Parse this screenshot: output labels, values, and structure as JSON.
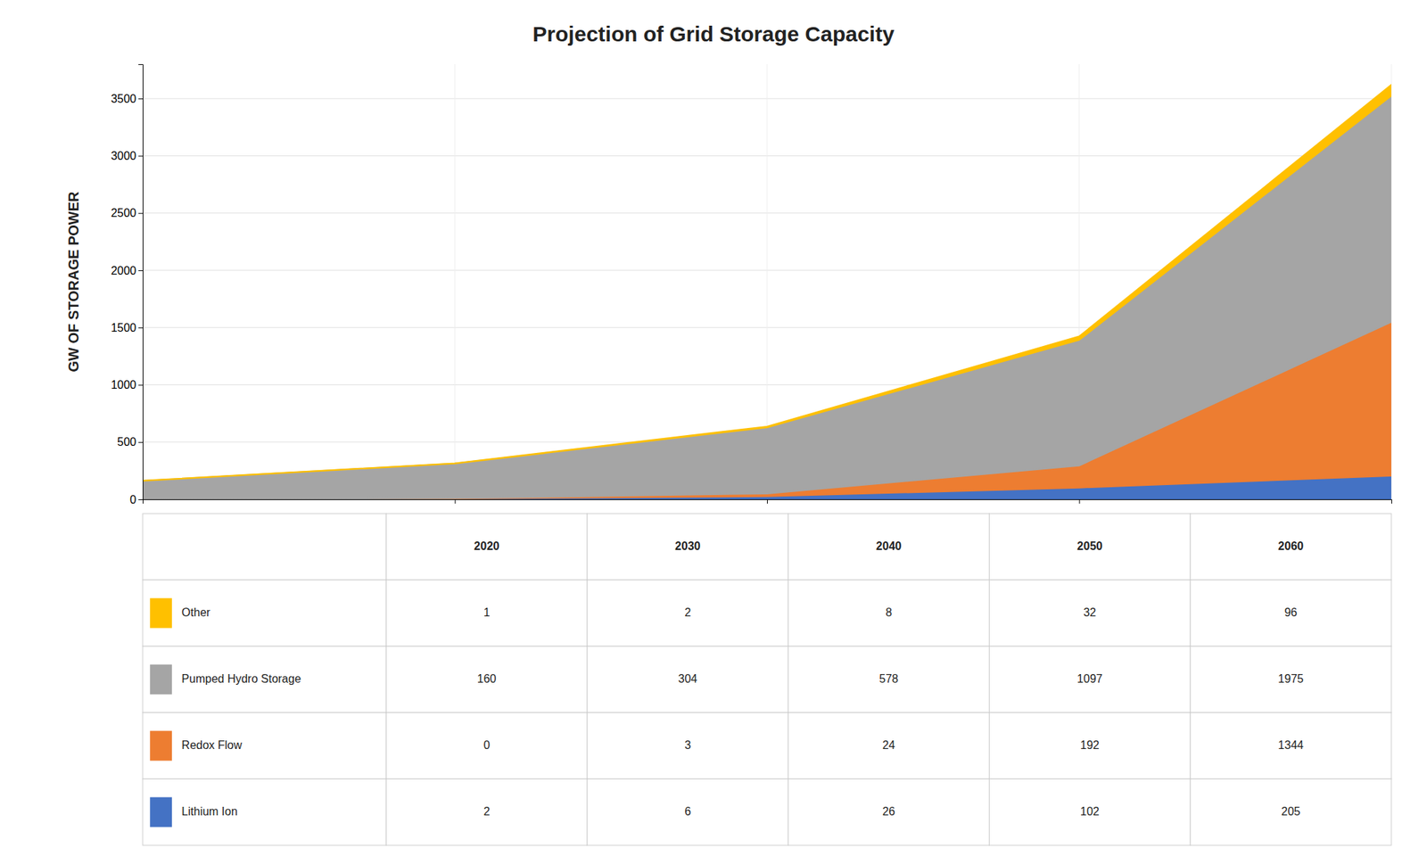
{
  "chart_data": {
    "type": "area",
    "title": "Projection of Grid Storage Capacity",
    "y_label": "GW OF STORAGE POWER",
    "x": [
      2020,
      2030,
      2040,
      2050,
      2060
    ],
    "series": [
      {
        "name": "Lithium Ion",
        "color": "#4472C4",
        "values": [
          2,
          6,
          26,
          102,
          205
        ]
      },
      {
        "name": "Redox Flow",
        "color": "#ED7D31",
        "values": [
          0,
          3,
          24,
          192,
          1344
        ]
      },
      {
        "name": "Pumped Hydro Storage",
        "color": "#A5A5A5",
        "values": [
          160,
          304,
          578,
          1097,
          1975
        ]
      },
      {
        "name": "Other",
        "color": "#FFC000",
        "values": [
          1,
          2,
          8,
          32,
          96
        ]
      }
    ],
    "stacked": true,
    "xlim": [
      2020,
      2060
    ],
    "xticks": [
      2020,
      2030,
      2040,
      2050,
      2060
    ],
    "ylim": [
      0,
      3800
    ],
    "yticks": [
      0,
      500,
      1000,
      1500,
      2000,
      2500,
      3000,
      3500
    ],
    "grid": true,
    "tick_labels": "y"
  }
}
